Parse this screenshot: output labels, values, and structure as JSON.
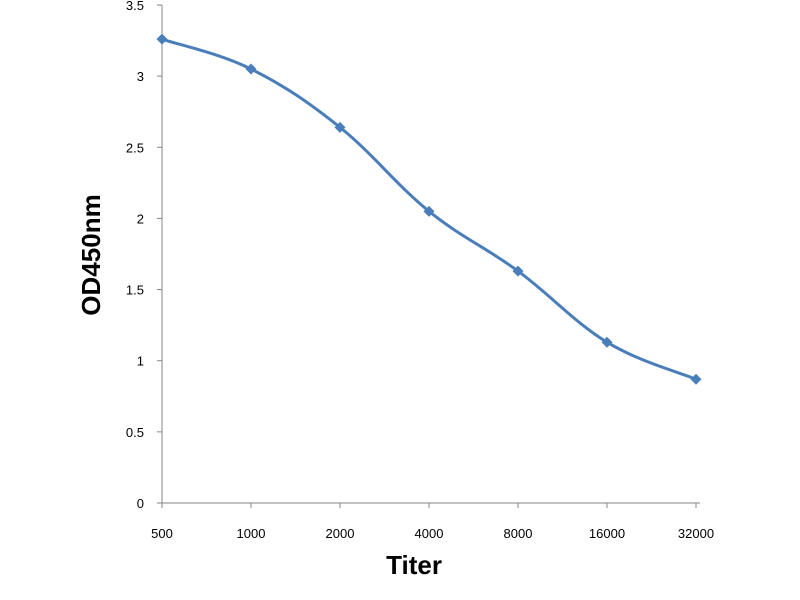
{
  "chart_data": {
    "type": "line",
    "title": "",
    "xlabel": "Titer",
    "ylabel": "OD450nm",
    "categories": [
      "500",
      "1000",
      "2000",
      "4000",
      "8000",
      "16000",
      "32000"
    ],
    "y_ticks": [
      "0",
      "0.5",
      "1",
      "1.5",
      "2",
      "2.5",
      "3",
      "3.5"
    ],
    "ylim": [
      0,
      3.5
    ],
    "grid": false,
    "legend": "none",
    "series": [
      {
        "values": [
          3.26,
          3.05,
          2.64,
          2.05,
          1.63,
          1.13,
          0.87
        ],
        "color": "#4a7ebb",
        "marker": "diamond",
        "smooth": true
      }
    ]
  }
}
